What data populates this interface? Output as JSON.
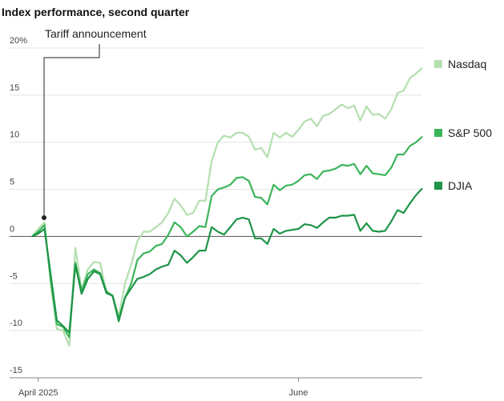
{
  "chart_data": {
    "type": "line",
    "title": "Index performance, second quarter",
    "annotation": "Tariff announcement",
    "categories": [
      null,
      "April 2025",
      null,
      null,
      null,
      null,
      null,
      null,
      null,
      null,
      null,
      null,
      null,
      null,
      null,
      null,
      null,
      null,
      null,
      null,
      null,
      null,
      null,
      null,
      null,
      null,
      null,
      null,
      null,
      null,
      null,
      null,
      null,
      null,
      null,
      null,
      null,
      null,
      null,
      null,
      null,
      null,
      null,
      "June",
      null,
      null,
      null,
      null,
      null,
      null,
      null,
      null,
      null,
      null,
      null,
      null,
      null,
      null,
      null,
      null,
      null,
      null,
      null,
      null
    ],
    "series": [
      {
        "name": "Nasdaq",
        "color": "#b3dfae",
        "values": [
          0,
          0.8,
          1.5,
          -5,
          -9.8,
          -10,
          -11.6,
          -1.2,
          -5.7,
          -3.5,
          -2.7,
          -2.8,
          -6,
          -6.2,
          -8.5,
          -5,
          -3,
          -0.5,
          0.5,
          0.5,
          1,
          1.5,
          2.5,
          4,
          3.3,
          2.3,
          2.5,
          3.8,
          3.8,
          8,
          10,
          10.7,
          10.5,
          11,
          11,
          10.6,
          9.2,
          9.4,
          8.4,
          11,
          10.5,
          11,
          10.6,
          11.3,
          12.2,
          12.5,
          11.7,
          12.8,
          13,
          13.5,
          14,
          13.6,
          13.9,
          12.3,
          13.8,
          12.9,
          13,
          12.5,
          13.5,
          15.2,
          15.5,
          16.8,
          17.3,
          17.9
        ]
      },
      {
        "name": "S&P 500",
        "color": "#3cb55a",
        "values": [
          0,
          0.5,
          1.2,
          -4.5,
          -9.3,
          -9.6,
          -10.7,
          -2.8,
          -5.8,
          -4,
          -3.5,
          -3.9,
          -5.8,
          -6.3,
          -8.7,
          -6.5,
          -5,
          -2.5,
          -1.8,
          -1.6,
          -1,
          -0.8,
          0.2,
          1.5,
          1,
          0,
          0.5,
          1.1,
          1,
          4.3,
          5,
          5.2,
          5.5,
          6.2,
          6.3,
          5.9,
          4.2,
          4.1,
          3.4,
          5.5,
          4.9,
          5.4,
          5.5,
          5.9,
          6.5,
          6.6,
          6.1,
          6.9,
          7,
          7.2,
          7.6,
          7.5,
          7.7,
          6.6,
          7.5,
          6.7,
          6.6,
          6.5,
          7.3,
          8.7,
          8.7,
          9.6,
          10,
          10.6
        ]
      },
      {
        "name": "DJIA",
        "color": "#1f9448",
        "values": [
          0,
          0.3,
          0.8,
          -4,
          -8.9,
          -9.5,
          -10.2,
          -3,
          -6.1,
          -4.5,
          -3.7,
          -4,
          -6,
          -6.3,
          -9,
          -6.5,
          -5.5,
          -4.5,
          -4.3,
          -4,
          -3.5,
          -3.2,
          -3,
          -1.5,
          -2,
          -2.8,
          -2.2,
          -1.5,
          -1.5,
          1,
          0.5,
          0.2,
          1,
          1.8,
          2,
          1.8,
          -0.2,
          -0.2,
          -0.8,
          0.8,
          0.3,
          0.6,
          0.7,
          0.8,
          1.3,
          1.2,
          0.9,
          1.5,
          2,
          2,
          2.2,
          2.2,
          2.3,
          0.6,
          1.4,
          0.6,
          0.5,
          0.6,
          1.6,
          2.8,
          2.5,
          3.5,
          4.4,
          5.1
        ]
      }
    ],
    "ylim": [
      -15,
      20
    ],
    "yticks": [
      -15,
      -10,
      -5,
      0,
      5,
      10,
      15,
      {
        "value": 20,
        "label": "20%"
      }
    ],
    "grid": true
  }
}
